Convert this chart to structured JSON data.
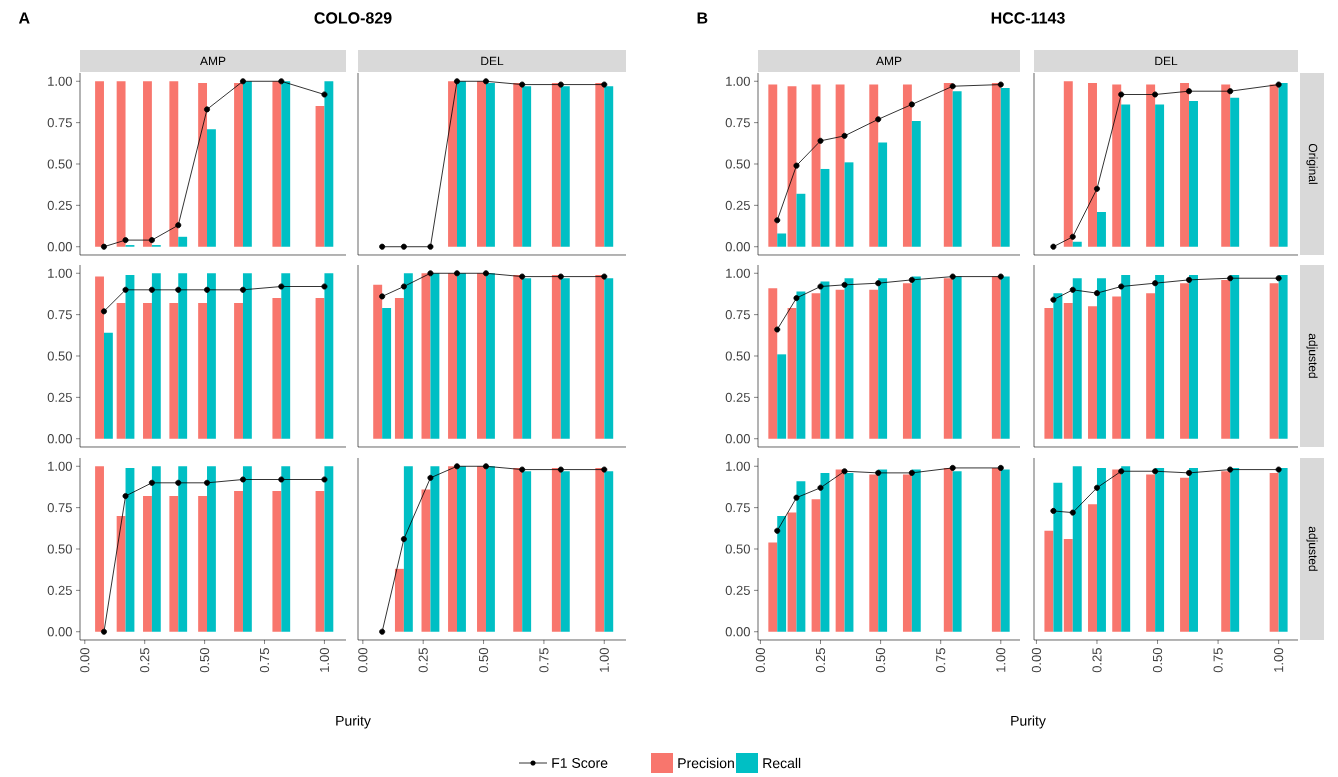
{
  "chart_data": [
    {
      "type": "bar",
      "title": "AMP",
      "annotations": [
        "A",
        "COLO-829"
      ],
      "x": [
        0.08,
        0.17,
        0.28,
        0.39,
        0.51,
        0.66,
        0.82,
        1.0
      ],
      "xlim": [
        -0.02,
        1.09
      ],
      "ylim": [
        -0.05,
        1.05
      ],
      "yticks": [
        {
          "value": 0,
          "label": "0.00"
        },
        {
          "value": 0.25,
          "label": "0.25"
        },
        {
          "value": 0.5,
          "label": "0.50"
        },
        {
          "value": 0.75,
          "label": "0.75"
        },
        {
          "value": 1,
          "label": "1.00"
        }
      ],
      "tick_labels": "y",
      "series": [
        {
          "color": "#f8766d",
          "values": [
            1,
            1,
            1,
            1,
            0.99,
            0.99,
            1,
            0.85
          ]
        },
        {
          "color": "#00bfc4",
          "values": [
            0,
            0.01,
            0.01,
            0.06,
            0.71,
            1,
            1,
            1
          ]
        },
        {
          "type": "line",
          "color": "#000000",
          "marker": "circle",
          "values": [
            0,
            0.04,
            0.04,
            0.13,
            0.83,
            1,
            1,
            0.92
          ]
        }
      ]
    },
    {
      "type": "bar",
      "title": "DEL",
      "x": [
        0.08,
        0.17,
        0.28,
        0.39,
        0.51,
        0.66,
        0.82,
        1.0
      ],
      "xlim": [
        -0.02,
        1.09
      ],
      "ylim": [
        -0.05,
        1.05
      ],
      "tick_labels": false,
      "series": [
        {
          "color": "#f8766d",
          "values": [
            null,
            null,
            null,
            1,
            1,
            0.99,
            0.99,
            0.99
          ]
        },
        {
          "color": "#00bfc4",
          "values": [
            0,
            0,
            0,
            1,
            0.99,
            0.97,
            0.97,
            0.97
          ]
        },
        {
          "type": "line",
          "color": "#000000",
          "marker": "circle",
          "values": [
            0,
            0,
            0,
            1,
            1,
            0.98,
            0.98,
            0.98
          ]
        }
      ]
    },
    {
      "type": "bar",
      "x": [
        0.08,
        0.17,
        0.28,
        0.39,
        0.51,
        0.66,
        0.82,
        1.0
      ],
      "xlim": [
        -0.02,
        1.09
      ],
      "ylim": [
        -0.05,
        1.05
      ],
      "yticks": [
        {
          "value": 0,
          "label": "0.00"
        },
        {
          "value": 0.25,
          "label": "0.25"
        },
        {
          "value": 0.5,
          "label": "0.50"
        },
        {
          "value": 0.75,
          "label": "0.75"
        },
        {
          "value": 1,
          "label": "1.00"
        }
      ],
      "tick_labels": "y",
      "series": [
        {
          "color": "#f8766d",
          "values": [
            0.98,
            0.82,
            0.82,
            0.82,
            0.82,
            0.82,
            0.85,
            0.85
          ]
        },
        {
          "color": "#00bfc4",
          "values": [
            0.64,
            0.99,
            1,
            1,
            1,
            1,
            1,
            1
          ]
        },
        {
          "type": "line",
          "color": "#000000",
          "marker": "circle",
          "values": [
            0.77,
            0.9,
            0.9,
            0.9,
            0.9,
            0.9,
            0.92,
            0.92
          ]
        }
      ]
    },
    {
      "type": "bar",
      "x": [
        0.08,
        0.17,
        0.28,
        0.39,
        0.51,
        0.66,
        0.82,
        1.0
      ],
      "xlim": [
        -0.02,
        1.09
      ],
      "ylim": [
        -0.05,
        1.05
      ],
      "tick_labels": false,
      "series": [
        {
          "color": "#f8766d",
          "values": [
            0.93,
            0.85,
            1,
            1,
            1,
            0.99,
            0.99,
            0.99
          ]
        },
        {
          "color": "#00bfc4",
          "values": [
            0.79,
            1,
            1,
            1,
            1,
            0.97,
            0.97,
            0.97
          ]
        },
        {
          "type": "line",
          "color": "#000000",
          "marker": "circle",
          "values": [
            0.86,
            0.92,
            1,
            1,
            1,
            0.98,
            0.98,
            0.98
          ]
        }
      ]
    },
    {
      "type": "bar",
      "xlabel": "Purity",
      "legend": "bottom",
      "x": [
        0.08,
        0.17,
        0.28,
        0.39,
        0.51,
        0.66,
        0.82,
        1.0
      ],
      "xlim": [
        -0.02,
        1.09
      ],
      "ylim": [
        -0.05,
        1.05
      ],
      "xticks": [
        {
          "value": 0,
          "label": "0.00"
        },
        {
          "value": 0.25,
          "label": "0.25"
        },
        {
          "value": 0.5,
          "label": "0.50"
        },
        {
          "value": 0.75,
          "label": "0.75"
        },
        {
          "value": 1,
          "label": "1.00"
        }
      ],
      "yticks": [
        {
          "value": 0,
          "label": "0.00"
        },
        {
          "value": 0.25,
          "label": "0.25"
        },
        {
          "value": 0.5,
          "label": "0.50"
        },
        {
          "value": 0.75,
          "label": "0.75"
        },
        {
          "value": 1,
          "label": "1.00"
        }
      ],
      "series": [
        {
          "name": "Precision",
          "color": "#f8766d",
          "values": [
            1,
            0.7,
            0.82,
            0.82,
            0.82,
            0.85,
            0.85,
            0.85
          ]
        },
        {
          "name": "Recall",
          "color": "#00bfc4",
          "values": [
            0,
            0.99,
            1,
            1,
            1,
            1,
            1,
            1
          ]
        },
        {
          "name": "F1 Score",
          "type": "line",
          "color": "#000000",
          "marker": "circle",
          "values": [
            0,
            0.82,
            0.9,
            0.9,
            0.9,
            0.92,
            0.92,
            0.92
          ]
        }
      ]
    },
    {
      "type": "bar",
      "x": [
        0.08,
        0.17,
        0.28,
        0.39,
        0.51,
        0.66,
        0.82,
        1.0
      ],
      "xlim": [
        -0.02,
        1.09
      ],
      "ylim": [
        -0.05,
        1.05
      ],
      "xticks": [
        {
          "value": 0,
          "label": "0.00"
        },
        {
          "value": 0.25,
          "label": "0.25"
        },
        {
          "value": 0.5,
          "label": "0.50"
        },
        {
          "value": 0.75,
          "label": "0.75"
        },
        {
          "value": 1,
          "label": "1.00"
        }
      ],
      "tick_labels": "x",
      "series": [
        {
          "color": "#f8766d",
          "values": [
            null,
            0.38,
            0.86,
            1,
            1,
            0.99,
            0.99,
            0.99
          ]
        },
        {
          "color": "#00bfc4",
          "values": [
            0,
            1,
            1,
            1,
            1,
            0.97,
            0.97,
            0.97
          ]
        },
        {
          "type": "line",
          "color": "#000000",
          "marker": "circle",
          "values": [
            0,
            0.56,
            0.93,
            1,
            1,
            0.98,
            0.98,
            0.98
          ]
        }
      ]
    },
    {
      "type": "bar",
      "title": "AMP",
      "annotations": [
        "B",
        "HCC-1143"
      ],
      "x": [
        0.07,
        0.15,
        0.25,
        0.35,
        0.49,
        0.63,
        0.8,
        1.0
      ],
      "xlim": [
        -0.01,
        1.08
      ],
      "ylim": [
        -0.05,
        1.05
      ],
      "yticks": [
        {
          "value": 0,
          "label": "0.00"
        },
        {
          "value": 0.25,
          "label": "0.25"
        },
        {
          "value": 0.5,
          "label": "0.50"
        },
        {
          "value": 0.75,
          "label": "0.75"
        },
        {
          "value": 1,
          "label": "1.00"
        }
      ],
      "tick_labels": "y",
      "series": [
        {
          "color": "#f8766d",
          "values": [
            0.98,
            0.97,
            0.98,
            0.98,
            0.98,
            0.98,
            0.99,
            0.99
          ]
        },
        {
          "color": "#00bfc4",
          "values": [
            0.08,
            0.32,
            0.47,
            0.51,
            0.63,
            0.76,
            0.94,
            0.96
          ]
        },
        {
          "type": "line",
          "color": "#000000",
          "marker": "circle",
          "values": [
            0.16,
            0.49,
            0.64,
            0.67,
            0.77,
            0.86,
            0.97,
            0.98
          ]
        }
      ]
    },
    {
      "type": "bar",
      "title": "DEL",
      "y2label": "Original",
      "x": [
        0.07,
        0.15,
        0.25,
        0.35,
        0.49,
        0.63,
        0.8,
        1.0
      ],
      "xlim": [
        -0.01,
        1.08
      ],
      "ylim": [
        -0.05,
        1.05
      ],
      "tick_labels": false,
      "series": [
        {
          "color": "#f8766d",
          "values": [
            null,
            1,
            0.99,
            0.98,
            0.98,
            0.99,
            0.98,
            0.98
          ]
        },
        {
          "color": "#00bfc4",
          "values": [
            0,
            0.03,
            0.21,
            0.86,
            0.86,
            0.88,
            0.9,
            0.99
          ]
        },
        {
          "type": "line",
          "color": "#000000",
          "marker": "circle",
          "values": [
            0,
            0.06,
            0.35,
            0.92,
            0.92,
            0.94,
            0.94,
            0.98
          ]
        }
      ]
    },
    {
      "type": "bar",
      "x": [
        0.07,
        0.15,
        0.25,
        0.35,
        0.49,
        0.63,
        0.8,
        1.0
      ],
      "xlim": [
        -0.01,
        1.08
      ],
      "ylim": [
        -0.05,
        1.05
      ],
      "yticks": [
        {
          "value": 0,
          "label": "0.00"
        },
        {
          "value": 0.25,
          "label": "0.25"
        },
        {
          "value": 0.5,
          "label": "0.50"
        },
        {
          "value": 0.75,
          "label": "0.75"
        },
        {
          "value": 1,
          "label": "1.00"
        }
      ],
      "tick_labels": "y",
      "series": [
        {
          "color": "#f8766d",
          "values": [
            0.91,
            0.79,
            0.88,
            0.9,
            0.9,
            0.94,
            0.97,
            0.98
          ]
        },
        {
          "color": "#00bfc4",
          "values": [
            0.51,
            0.89,
            0.95,
            0.97,
            0.97,
            0.98,
            0.98,
            0.98
          ]
        },
        {
          "type": "line",
          "color": "#000000",
          "marker": "circle",
          "values": [
            0.66,
            0.85,
            0.92,
            0.93,
            0.94,
            0.96,
            0.98,
            0.98
          ]
        }
      ]
    },
    {
      "type": "bar",
      "y2label": "adjusted",
      "x": [
        0.07,
        0.15,
        0.25,
        0.35,
        0.49,
        0.63,
        0.8,
        1.0
      ],
      "xlim": [
        -0.01,
        1.08
      ],
      "ylim": [
        -0.05,
        1.05
      ],
      "tick_labels": false,
      "series": [
        {
          "color": "#f8766d",
          "values": [
            0.79,
            0.82,
            0.8,
            0.86,
            0.88,
            0.94,
            0.96,
            0.94
          ]
        },
        {
          "color": "#00bfc4",
          "values": [
            0.88,
            0.97,
            0.97,
            0.99,
            0.99,
            0.99,
            0.99,
            0.99
          ]
        },
        {
          "type": "line",
          "color": "#000000",
          "marker": "circle",
          "values": [
            0.84,
            0.9,
            0.88,
            0.92,
            0.94,
            0.96,
            0.97,
            0.97
          ]
        }
      ]
    },
    {
      "type": "bar",
      "xlabel": "Purity",
      "x": [
        0.07,
        0.15,
        0.25,
        0.35,
        0.49,
        0.63,
        0.8,
        1.0
      ],
      "xlim": [
        -0.01,
        1.08
      ],
      "ylim": [
        -0.05,
        1.05
      ],
      "xticks": [
        {
          "value": 0,
          "label": "0.00"
        },
        {
          "value": 0.25,
          "label": "0.25"
        },
        {
          "value": 0.5,
          "label": "0.50"
        },
        {
          "value": 0.75,
          "label": "0.75"
        },
        {
          "value": 1,
          "label": "1.00"
        }
      ],
      "yticks": [
        {
          "value": 0,
          "label": "0.00"
        },
        {
          "value": 0.25,
          "label": "0.25"
        },
        {
          "value": 0.5,
          "label": "0.50"
        },
        {
          "value": 0.75,
          "label": "0.75"
        },
        {
          "value": 1,
          "label": "1.00"
        }
      ],
      "series": [
        {
          "color": "#f8766d",
          "values": [
            0.54,
            0.72,
            0.8,
            0.98,
            0.95,
            0.95,
            0.99,
            0.99
          ]
        },
        {
          "color": "#00bfc4",
          "values": [
            0.7,
            0.91,
            0.96,
            0.96,
            0.98,
            0.98,
            0.97,
            0.98
          ]
        },
        {
          "type": "line",
          "color": "#000000",
          "marker": "circle",
          "values": [
            0.61,
            0.81,
            0.87,
            0.97,
            0.96,
            0.96,
            0.99,
            0.99
          ]
        }
      ]
    },
    {
      "type": "bar",
      "y2label": "adjusted",
      "x": [
        0.07,
        0.15,
        0.25,
        0.35,
        0.49,
        0.63,
        0.8,
        1.0
      ],
      "xlim": [
        -0.01,
        1.08
      ],
      "ylim": [
        -0.05,
        1.05
      ],
      "xticks": [
        {
          "value": 0,
          "label": "0.00"
        },
        {
          "value": 0.25,
          "label": "0.25"
        },
        {
          "value": 0.5,
          "label": "0.50"
        },
        {
          "value": 0.75,
          "label": "0.75"
        },
        {
          "value": 1,
          "label": "1.00"
        }
      ],
      "tick_labels": "x",
      "series": [
        {
          "color": "#f8766d",
          "values": [
            0.61,
            0.56,
            0.77,
            0.98,
            0.95,
            0.93,
            0.97,
            0.96
          ]
        },
        {
          "color": "#00bfc4",
          "values": [
            0.9,
            1,
            0.99,
            1,
            0.99,
            0.99,
            0.99,
            0.99
          ]
        },
        {
          "type": "line",
          "color": "#000000",
          "marker": "circle",
          "values": [
            0.73,
            0.72,
            0.87,
            0.97,
            0.97,
            0.96,
            0.98,
            0.98
          ]
        }
      ]
    }
  ]
}
